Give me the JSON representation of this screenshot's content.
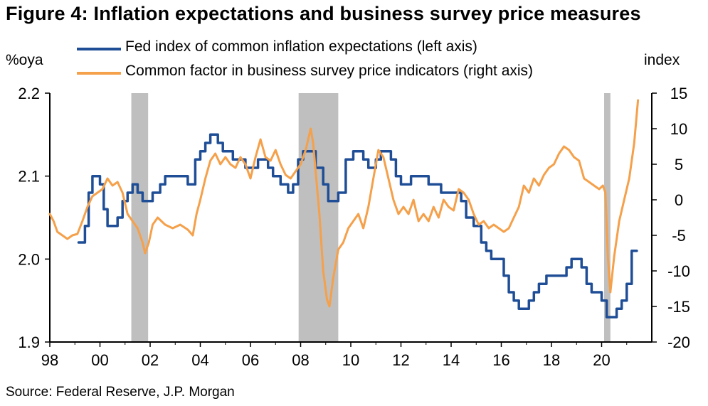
{
  "title": "Figure 4: Inflation expectations and business survey price measures",
  "source": "Source: Federal Reserve, J.P. Morgan",
  "colors": {
    "left_series": "#1f4e96",
    "right_series": "#f5a04a",
    "recession": "#bfbfbf",
    "axis": "#000000"
  },
  "chart_data": {
    "type": "line",
    "title": "Figure 4: Inflation expectations and business survey price measures",
    "left_axis": {
      "label": "%oya",
      "ylim": [
        1.9,
        2.2
      ],
      "ticks": [
        "1.9",
        "2.0",
        "2.1",
        "2.2"
      ]
    },
    "right_axis": {
      "label": "index",
      "ylim": [
        -20,
        15
      ],
      "ticks": [
        "-20",
        "-15",
        "-10",
        "-5",
        "0",
        "5",
        "10",
        "15"
      ]
    },
    "x_axis": {
      "xlim": [
        1998,
        2022
      ],
      "ticks": [
        "98",
        "00",
        "02",
        "04",
        "06",
        "08",
        "10",
        "12",
        "14",
        "16",
        "18",
        "20"
      ]
    },
    "grid": false,
    "legend_position": "top",
    "recessions": [
      [
        2001.25,
        2001.92
      ],
      [
        2007.92,
        2009.5
      ],
      [
        2020.1,
        2020.35
      ]
    ],
    "series": [
      {
        "name": "Fed index of common inflation expectations (left axis)",
        "axis": "left",
        "step": true,
        "points": [
          [
            1999.15,
            2.02
          ],
          [
            1999.4,
            2.04
          ],
          [
            1999.55,
            2.08
          ],
          [
            1999.7,
            2.1
          ],
          [
            2000.0,
            2.09
          ],
          [
            2000.15,
            2.06
          ],
          [
            2000.3,
            2.04
          ],
          [
            2000.7,
            2.05
          ],
          [
            2000.9,
            2.07
          ],
          [
            2001.1,
            2.08
          ],
          [
            2001.3,
            2.09
          ],
          [
            2001.5,
            2.08
          ],
          [
            2001.7,
            2.07
          ],
          [
            2002.1,
            2.08
          ],
          [
            2002.4,
            2.09
          ],
          [
            2002.6,
            2.1
          ],
          [
            2003.5,
            2.09
          ],
          [
            2003.8,
            2.12
          ],
          [
            2004.0,
            2.13
          ],
          [
            2004.2,
            2.14
          ],
          [
            2004.4,
            2.15
          ],
          [
            2004.7,
            2.14
          ],
          [
            2004.9,
            2.13
          ],
          [
            2005.3,
            2.12
          ],
          [
            2005.8,
            2.11
          ],
          [
            2006.3,
            2.12
          ],
          [
            2006.7,
            2.11
          ],
          [
            2006.9,
            2.1
          ],
          [
            2007.2,
            2.09
          ],
          [
            2007.5,
            2.08
          ],
          [
            2007.7,
            2.09
          ],
          [
            2007.9,
            2.12
          ],
          [
            2008.1,
            2.13
          ],
          [
            2008.6,
            2.11
          ],
          [
            2008.9,
            2.09
          ],
          [
            2009.1,
            2.07
          ],
          [
            2009.5,
            2.08
          ],
          [
            2009.8,
            2.12
          ],
          [
            2010.1,
            2.13
          ],
          [
            2010.5,
            2.12
          ],
          [
            2010.7,
            2.11
          ],
          [
            2011.0,
            2.12
          ],
          [
            2011.2,
            2.13
          ],
          [
            2011.6,
            2.12
          ],
          [
            2011.8,
            2.1
          ],
          [
            2012.0,
            2.09
          ],
          [
            2012.4,
            2.1
          ],
          [
            2013.1,
            2.09
          ],
          [
            2013.6,
            2.08
          ],
          [
            2014.4,
            2.07
          ],
          [
            2014.6,
            2.05
          ],
          [
            2014.9,
            2.04
          ],
          [
            2015.2,
            2.02
          ],
          [
            2015.4,
            2.01
          ],
          [
            2015.6,
            2.0
          ],
          [
            2016.1,
            1.98
          ],
          [
            2016.3,
            1.96
          ],
          [
            2016.5,
            1.95
          ],
          [
            2016.7,
            1.94
          ],
          [
            2017.1,
            1.95
          ],
          [
            2017.3,
            1.96
          ],
          [
            2017.5,
            1.97
          ],
          [
            2017.8,
            1.98
          ],
          [
            2018.6,
            1.99
          ],
          [
            2018.8,
            2.0
          ],
          [
            2019.2,
            1.99
          ],
          [
            2019.4,
            1.97
          ],
          [
            2019.6,
            1.96
          ],
          [
            2020.0,
            1.95
          ],
          [
            2020.2,
            1.93
          ],
          [
            2020.6,
            1.94
          ],
          [
            2020.8,
            1.95
          ],
          [
            2021.0,
            1.97
          ],
          [
            2021.2,
            2.01
          ],
          [
            2021.4,
            2.01
          ]
        ]
      },
      {
        "name": "Common factor in business survey price indicators (right axis)",
        "axis": "right",
        "step": false,
        "points": [
          [
            1998.0,
            -2
          ],
          [
            1998.15,
            -3
          ],
          [
            1998.3,
            -4.5
          ],
          [
            1998.5,
            -5
          ],
          [
            1998.7,
            -5.5
          ],
          [
            1998.9,
            -5
          ],
          [
            1999.1,
            -4.8
          ],
          [
            1999.3,
            -3
          ],
          [
            1999.5,
            -1
          ],
          [
            1999.7,
            0.5
          ],
          [
            1999.9,
            1
          ],
          [
            2000.1,
            1.5
          ],
          [
            2000.3,
            3
          ],
          [
            2000.5,
            2
          ],
          [
            2000.7,
            2.5
          ],
          [
            2000.9,
            1
          ],
          [
            2001.1,
            -2
          ],
          [
            2001.3,
            -3
          ],
          [
            2001.5,
            -4
          ],
          [
            2001.7,
            -6
          ],
          [
            2001.8,
            -7.5
          ],
          [
            2001.95,
            -6
          ],
          [
            2002.1,
            -3.5
          ],
          [
            2002.3,
            -2.5
          ],
          [
            2002.6,
            -3.5
          ],
          [
            2002.9,
            -4
          ],
          [
            2003.2,
            -3.5
          ],
          [
            2003.5,
            -4.2
          ],
          [
            2003.7,
            -5
          ],
          [
            2003.85,
            -2
          ],
          [
            2004.0,
            0
          ],
          [
            2004.2,
            3
          ],
          [
            2004.4,
            5.5
          ],
          [
            2004.6,
            6.5
          ],
          [
            2004.8,
            5
          ],
          [
            2005.0,
            6
          ],
          [
            2005.2,
            5
          ],
          [
            2005.4,
            4.5
          ],
          [
            2005.6,
            6
          ],
          [
            2005.8,
            5
          ],
          [
            2006.0,
            3
          ],
          [
            2006.2,
            6
          ],
          [
            2006.4,
            8.5
          ],
          [
            2006.6,
            6
          ],
          [
            2006.8,
            5.5
          ],
          [
            2007.0,
            7
          ],
          [
            2007.2,
            5
          ],
          [
            2007.4,
            3.5
          ],
          [
            2007.6,
            3
          ],
          [
            2007.8,
            4
          ],
          [
            2008.0,
            5
          ],
          [
            2008.2,
            7
          ],
          [
            2008.4,
            10
          ],
          [
            2008.5,
            8
          ],
          [
            2008.6,
            4
          ],
          [
            2008.75,
            -2
          ],
          [
            2008.9,
            -10
          ],
          [
            2009.05,
            -14
          ],
          [
            2009.15,
            -15
          ],
          [
            2009.3,
            -11
          ],
          [
            2009.5,
            -7
          ],
          [
            2009.7,
            -6
          ],
          [
            2009.9,
            -4
          ],
          [
            2010.1,
            -3
          ],
          [
            2010.3,
            -2
          ],
          [
            2010.5,
            -4
          ],
          [
            2010.7,
            -1
          ],
          [
            2010.9,
            3
          ],
          [
            2011.1,
            7
          ],
          [
            2011.3,
            6
          ],
          [
            2011.5,
            3
          ],
          [
            2011.7,
            0
          ],
          [
            2011.9,
            -2
          ],
          [
            2012.1,
            -1
          ],
          [
            2012.3,
            -2
          ],
          [
            2012.5,
            0
          ],
          [
            2012.7,
            -3
          ],
          [
            2012.9,
            -2
          ],
          [
            2013.1,
            -3
          ],
          [
            2013.3,
            -1
          ],
          [
            2013.5,
            -2.5
          ],
          [
            2013.7,
            0
          ],
          [
            2013.9,
            -1
          ],
          [
            2014.1,
            -1.5
          ],
          [
            2014.3,
            1.5
          ],
          [
            2014.5,
            1
          ],
          [
            2014.7,
            0
          ],
          [
            2014.9,
            -2
          ],
          [
            2015.1,
            -3.5
          ],
          [
            2015.3,
            -3
          ],
          [
            2015.5,
            -4
          ],
          [
            2015.7,
            -3.5
          ],
          [
            2015.9,
            -4
          ],
          [
            2016.1,
            -4.5
          ],
          [
            2016.3,
            -4
          ],
          [
            2016.5,
            -2.5
          ],
          [
            2016.7,
            -1
          ],
          [
            2016.9,
            2
          ],
          [
            2017.1,
            1
          ],
          [
            2017.3,
            3
          ],
          [
            2017.5,
            2
          ],
          [
            2017.7,
            3.5
          ],
          [
            2017.9,
            4.5
          ],
          [
            2018.1,
            5
          ],
          [
            2018.3,
            6.5
          ],
          [
            2018.5,
            7.5
          ],
          [
            2018.7,
            7
          ],
          [
            2018.9,
            6
          ],
          [
            2019.1,
            5.5
          ],
          [
            2019.3,
            3
          ],
          [
            2019.5,
            2.5
          ],
          [
            2019.7,
            2
          ],
          [
            2019.9,
            1.5
          ],
          [
            2020.05,
            2
          ],
          [
            2020.15,
            1
          ],
          [
            2020.25,
            -8
          ],
          [
            2020.35,
            -13
          ],
          [
            2020.5,
            -8
          ],
          [
            2020.7,
            -3
          ],
          [
            2020.9,
            0
          ],
          [
            2021.1,
            3
          ],
          [
            2021.3,
            8
          ],
          [
            2021.45,
            14
          ]
        ]
      }
    ]
  }
}
